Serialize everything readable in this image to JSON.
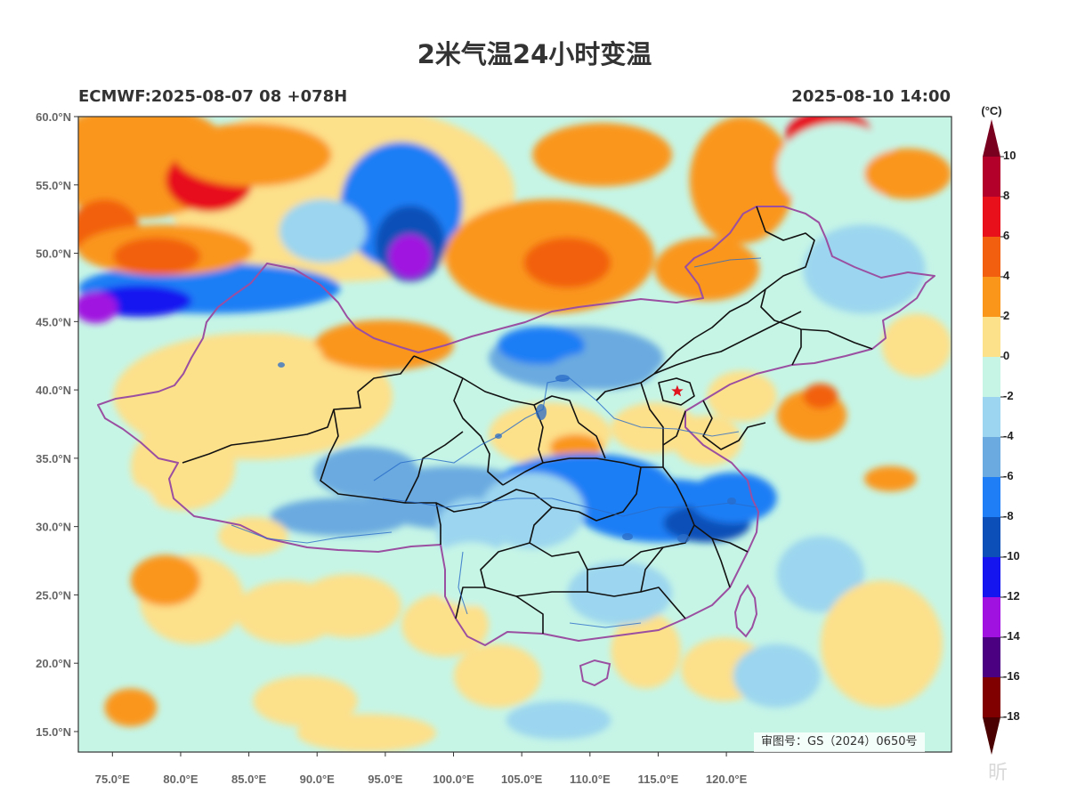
{
  "title": "2米气温24小时变温",
  "left_header": "ECMWF:2025-08-07 08 +078H",
  "right_header": "2025-08-10 14:00",
  "approval_number": "审图号：GS（2024）0650号",
  "watermark_text": "昕",
  "axes": {
    "lat_labels": [
      "60.0°N",
      "55.0°N",
      "50.0°N",
      "45.0°N",
      "40.0°N",
      "35.0°N",
      "30.0°N",
      "25.0°N",
      "20.0°N",
      "15.0°N"
    ],
    "lat_values": [
      60,
      55,
      50,
      45,
      40,
      35,
      30,
      25,
      20,
      15
    ],
    "lon_labels": [
      "75.0°E",
      "80.0°E",
      "85.0°E",
      "90.0°E",
      "95.0°E",
      "100.0°E",
      "105.0°E",
      "110.0°E",
      "115.0°E",
      "120.0°E"
    ],
    "lon_values": [
      75,
      80,
      85,
      90,
      95,
      100,
      105,
      110,
      115,
      120
    ],
    "lon_range": [
      72.5,
      136.5
    ],
    "lat_range": [
      13.5,
      60.0
    ]
  },
  "colorbar": {
    "unit": "(°C)",
    "labels": [
      "10",
      "8",
      "6",
      "4",
      "2",
      "0",
      "-2",
      "-4",
      "-6",
      "-8",
      "-10",
      "-12",
      "-14",
      "-16",
      "-18"
    ],
    "bounds": [
      10,
      8,
      6,
      4,
      2,
      0,
      -2,
      -4,
      -6,
      -8,
      -10,
      -12,
      -14,
      -16,
      -18
    ],
    "colors": [
      "#b3002a",
      "#e8101a",
      "#f2600f",
      "#fa961a",
      "#fde08a",
      "#c6f5e6",
      "#9bd5ef",
      "#6aaae0",
      "#1f7ef5",
      "#0d4fb8",
      "#1515f0",
      "#a012e0",
      "#4a0080",
      "#800000"
    ],
    "top_arrow_color": "#7a0020",
    "bottom_arrow_color": "#4a0000"
  },
  "marker": {
    "name": "Beijing",
    "lon": 116.4,
    "lat": 39.9,
    "color": "#e0141e"
  }
}
